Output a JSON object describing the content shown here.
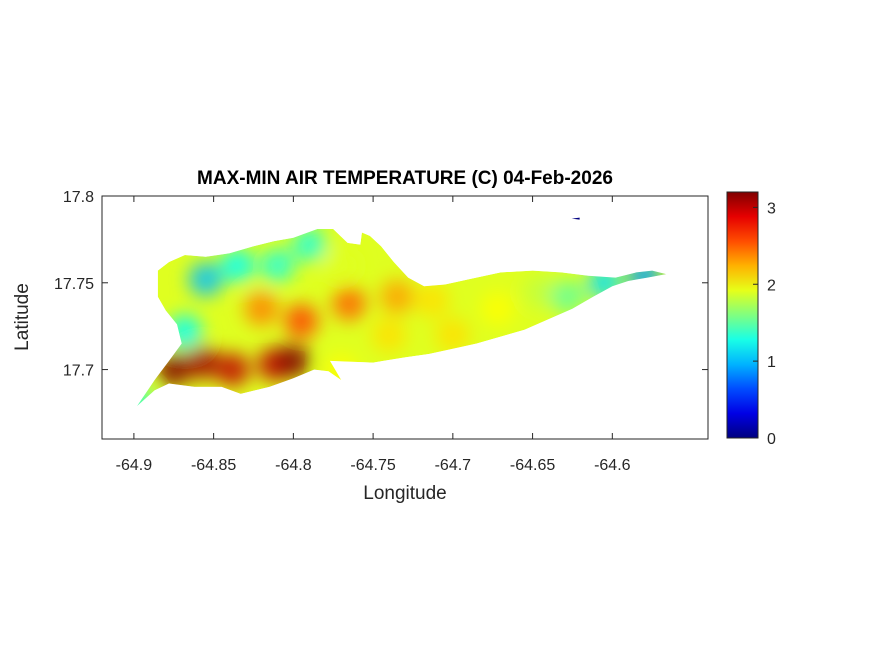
{
  "chart_data": {
    "type": "heatmap",
    "title": "MAX-MIN AIR TEMPERATURE (C) 04-Feb-2026",
    "xlabel": "Longitude",
    "ylabel": "Latitude",
    "xlim": [
      -64.92,
      -64.54
    ],
    "ylim": [
      17.66,
      17.8
    ],
    "xticks": [
      -64.9,
      -64.85,
      -64.8,
      -64.75,
      -64.7,
      -64.65,
      -64.6
    ],
    "xtick_labels": [
      "-64.9",
      "-64.85",
      "-64.8",
      "-64.75",
      "-64.7",
      "-64.65",
      "-64.6"
    ],
    "yticks": [
      17.7,
      17.75,
      17.8
    ],
    "ytick_labels": [
      "17.7",
      "17.75",
      "17.8"
    ],
    "colorbar": {
      "colormap": "jet",
      "clim": [
        0,
        3.2
      ],
      "ticks": [
        0,
        1,
        2,
        3
      ],
      "tick_labels": [
        "0",
        "1",
        "2",
        "3"
      ]
    },
    "outline": [
      [
        -64.898,
        17.679
      ],
      [
        -64.887,
        17.688
      ],
      [
        -64.878,
        17.692
      ],
      [
        -64.862,
        17.69
      ],
      [
        -64.845,
        17.69
      ],
      [
        -64.833,
        17.686
      ],
      [
        -64.815,
        17.69
      ],
      [
        -64.8,
        17.695
      ],
      [
        -64.787,
        17.7
      ],
      [
        -64.778,
        17.699
      ],
      [
        -64.77,
        17.694
      ],
      [
        -64.777,
        17.705
      ],
      [
        -64.75,
        17.704
      ],
      [
        -64.73,
        17.707
      ],
      [
        -64.715,
        17.709
      ],
      [
        -64.7,
        17.712
      ],
      [
        -64.685,
        17.715
      ],
      [
        -64.67,
        17.719
      ],
      [
        -64.655,
        17.723
      ],
      [
        -64.64,
        17.729
      ],
      [
        -64.625,
        17.735
      ],
      [
        -64.612,
        17.742
      ],
      [
        -64.6,
        17.748
      ],
      [
        -64.59,
        17.751
      ],
      [
        -64.578,
        17.753
      ],
      [
        -64.566,
        17.755
      ],
      [
        -64.575,
        17.757
      ],
      [
        -64.585,
        17.756
      ],
      [
        -64.598,
        17.753
      ],
      [
        -64.615,
        17.754
      ],
      [
        -64.632,
        17.756
      ],
      [
        -64.65,
        17.757
      ],
      [
        -64.67,
        17.756
      ],
      [
        -64.69,
        17.752
      ],
      [
        -64.705,
        17.749
      ],
      [
        -64.718,
        17.748
      ],
      [
        -64.728,
        17.753
      ],
      [
        -64.737,
        17.762
      ],
      [
        -64.745,
        17.771
      ],
      [
        -64.752,
        17.777
      ],
      [
        -64.757,
        17.779
      ],
      [
        -64.758,
        17.772
      ],
      [
        -64.766,
        17.773
      ],
      [
        -64.775,
        17.781
      ],
      [
        -64.785,
        17.781
      ],
      [
        -64.8,
        17.776
      ],
      [
        -64.812,
        17.774
      ],
      [
        -64.825,
        17.771
      ],
      [
        -64.84,
        17.767
      ],
      [
        -64.855,
        17.765
      ],
      [
        -64.868,
        17.766
      ],
      [
        -64.878,
        17.762
      ],
      [
        -64.885,
        17.757
      ],
      [
        -64.885,
        17.742
      ],
      [
        -64.88,
        17.734
      ],
      [
        -64.873,
        17.726
      ],
      [
        -64.87,
        17.715
      ],
      [
        -64.878,
        17.705
      ],
      [
        -64.887,
        17.694
      ]
    ],
    "islet": {
      "lon": -64.623,
      "lat": 17.787,
      "value": 0
    },
    "value_centers": [
      {
        "lon": -64.875,
        "lat": 17.7,
        "value": 3.2
      },
      {
        "lon": -64.857,
        "lat": 17.704,
        "value": 3.1
      },
      {
        "lon": -64.838,
        "lat": 17.7,
        "value": 3.0
      },
      {
        "lon": -64.812,
        "lat": 17.703,
        "value": 3.0
      },
      {
        "lon": -64.8,
        "lat": 17.705,
        "value": 3.2
      },
      {
        "lon": -64.795,
        "lat": 17.728,
        "value": 2.6
      },
      {
        "lon": -64.765,
        "lat": 17.738,
        "value": 2.5
      },
      {
        "lon": -64.735,
        "lat": 17.742,
        "value": 2.3
      },
      {
        "lon": -64.74,
        "lat": 17.72,
        "value": 2.1
      },
      {
        "lon": -64.713,
        "lat": 17.74,
        "value": 2.1
      },
      {
        "lon": -64.7,
        "lat": 17.72,
        "value": 2.1
      },
      {
        "lon": -64.672,
        "lat": 17.735,
        "value": 2.0
      },
      {
        "lon": -64.645,
        "lat": 17.745,
        "value": 1.8
      },
      {
        "lon": -64.628,
        "lat": 17.742,
        "value": 1.5
      },
      {
        "lon": -64.605,
        "lat": 17.75,
        "value": 1.1
      },
      {
        "lon": -64.58,
        "lat": 17.754,
        "value": 0.9
      },
      {
        "lon": -64.855,
        "lat": 17.752,
        "value": 1.0
      },
      {
        "lon": -64.835,
        "lat": 17.76,
        "value": 1.2
      },
      {
        "lon": -64.81,
        "lat": 17.76,
        "value": 1.3
      },
      {
        "lon": -64.79,
        "lat": 17.772,
        "value": 1.3
      },
      {
        "lon": -64.868,
        "lat": 17.722,
        "value": 1.2
      },
      {
        "lon": -64.77,
        "lat": 17.76,
        "value": 1.9
      },
      {
        "lon": -64.82,
        "lat": 17.735,
        "value": 2.4
      },
      {
        "lon": -64.898,
        "lat": 17.68,
        "value": 1.3
      },
      {
        "lon": -64.77,
        "lat": 17.699,
        "value": 2.0
      }
    ]
  }
}
